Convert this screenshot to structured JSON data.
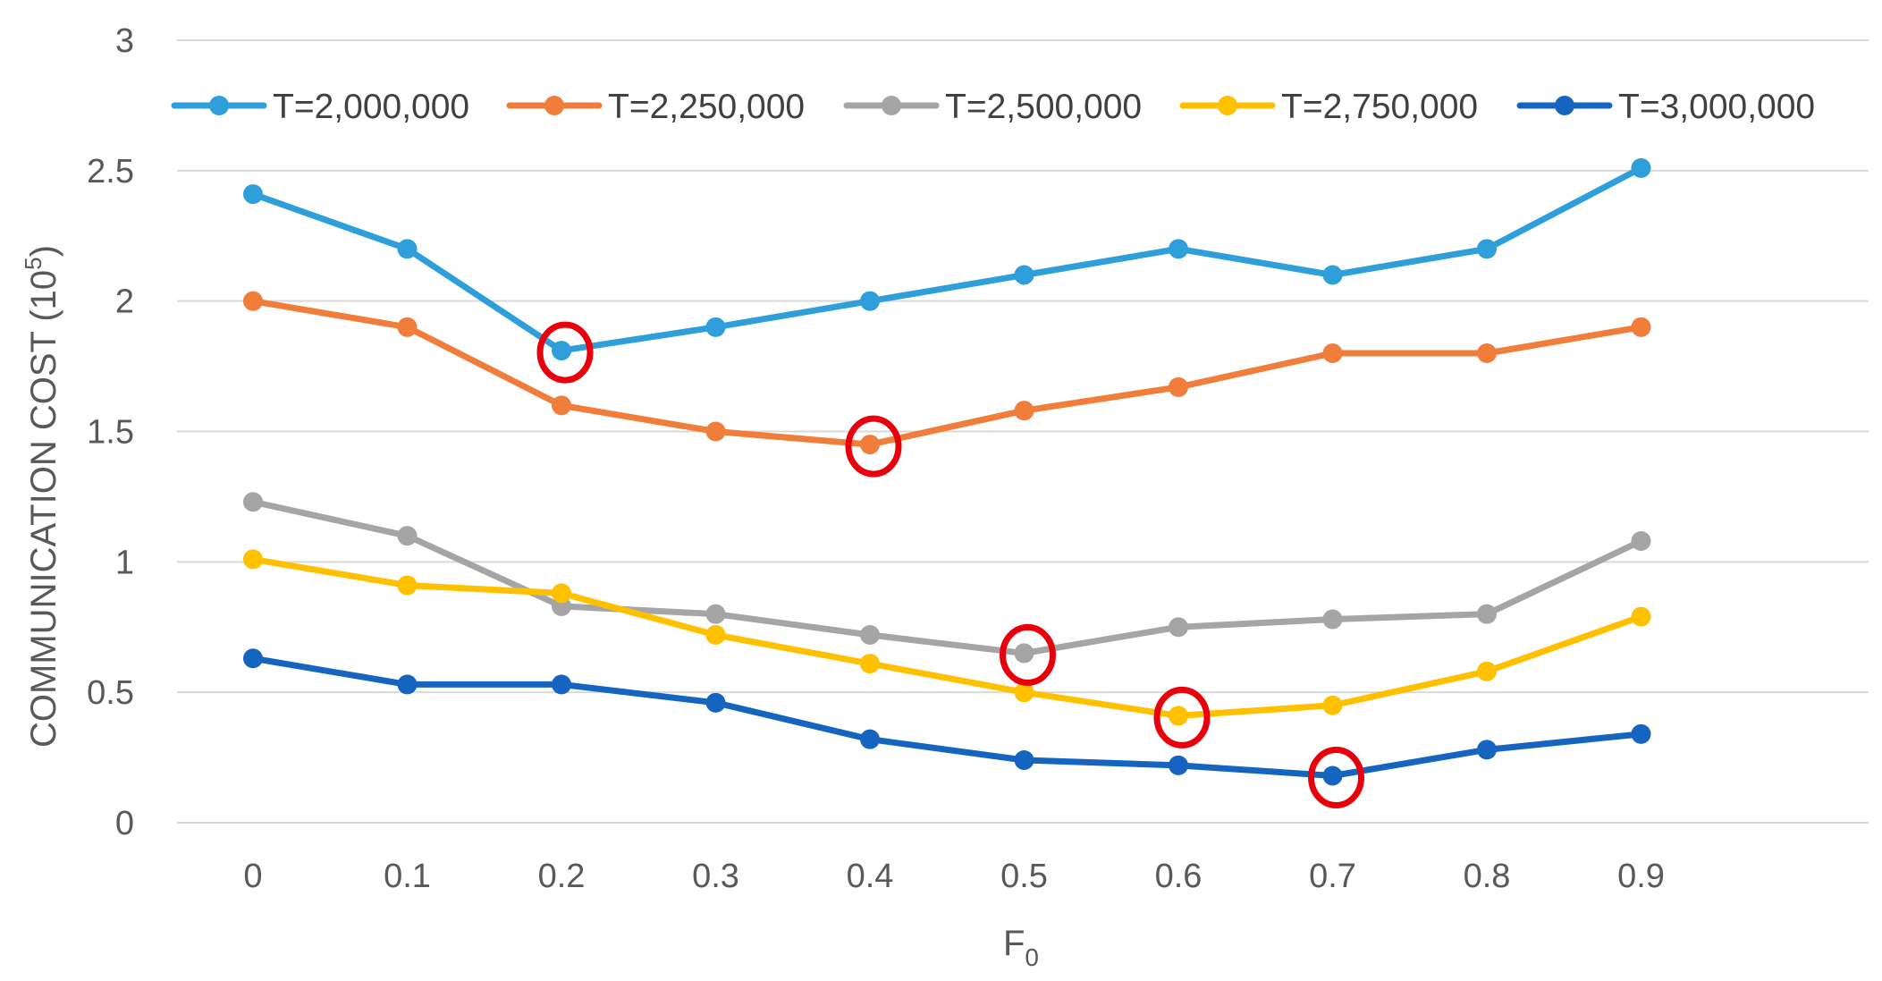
{
  "chart_data": {
    "type": "line",
    "title": "",
    "xlabel": "F",
    "xlabel_subscript": "0",
    "ylabel": "COMMUNICATION COST (10",
    "ylabel_superscript": "5",
    "ylabel_suffix": ")",
    "x": [
      0,
      0.1,
      0.2,
      0.3,
      0.4,
      0.5,
      0.6,
      0.7,
      0.8,
      0.9
    ],
    "x_tick_labels": [
      "0",
      "0.1",
      "0.2",
      "0.3",
      "0.4",
      "0.5",
      "0.6",
      "0.7",
      "0.8",
      "0.9"
    ],
    "ylim": [
      0,
      3
    ],
    "y_ticks": [
      0,
      0.5,
      1,
      1.5,
      2,
      2.5,
      3
    ],
    "y_tick_labels": [
      "0",
      "0.5",
      "1",
      "1.5",
      "2",
      "2.5",
      "3"
    ],
    "grid": true,
    "legend_position": "top",
    "series": [
      {
        "name": "T=2,000,000",
        "color": "#2E9FDB",
        "values": [
          2.41,
          2.2,
          1.81,
          1.9,
          2.0,
          2.1,
          2.2,
          2.1,
          2.2,
          2.51
        ],
        "highlight_index": 2
      },
      {
        "name": "T=2,250,000",
        "color": "#F07D3A",
        "values": [
          2.0,
          1.9,
          1.6,
          1.5,
          1.45,
          1.58,
          1.67,
          1.8,
          1.8,
          1.9
        ],
        "highlight_index": 4
      },
      {
        "name": "T=2,500,000",
        "color": "#A5A5A5",
        "values": [
          1.23,
          1.1,
          0.83,
          0.8,
          0.72,
          0.65,
          0.75,
          0.78,
          0.8,
          1.08
        ],
        "highlight_index": 5
      },
      {
        "name": "T=2,750,000",
        "color": "#FFC000",
        "values": [
          1.01,
          0.91,
          0.88,
          0.72,
          0.61,
          0.5,
          0.41,
          0.45,
          0.58,
          0.79
        ],
        "highlight_index": 6
      },
      {
        "name": "T=3,000,000",
        "color": "#1565C0",
        "values": [
          0.63,
          0.53,
          0.53,
          0.46,
          0.32,
          0.24,
          0.22,
          0.18,
          0.28,
          0.34
        ],
        "highlight_index": 7
      }
    ],
    "highlight_color": "#E8000B"
  }
}
